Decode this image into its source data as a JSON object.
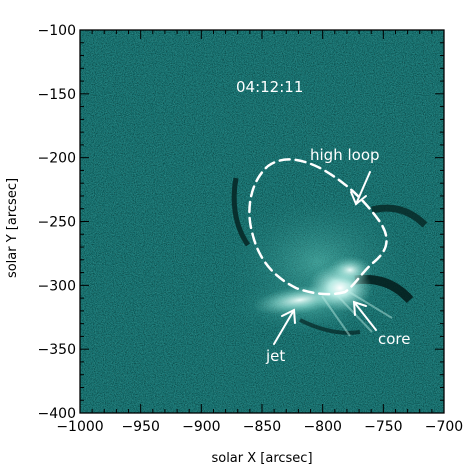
{
  "figure": {
    "timestamp": "04:12:11",
    "annotations": {
      "high_loop": "high loop",
      "core": "core",
      "jet": "jet"
    },
    "colors": {
      "background": "#1a7473",
      "highlight": "#eafffb",
      "frame": "#000000",
      "annotation": "#ffffff"
    }
  },
  "axes": {
    "x": {
      "label": "solar X [arcsec]",
      "range": [
        -1000,
        -700
      ],
      "ticks": [
        "−1000",
        "−950",
        "−900",
        "−850",
        "−800",
        "−750",
        "−700"
      ]
    },
    "y": {
      "label": "solar Y [arcsec]",
      "range": [
        -400,
        -100
      ],
      "ticks": [
        "−100",
        "−150",
        "−200",
        "−250",
        "−300",
        "−350",
        "−400"
      ]
    }
  }
}
